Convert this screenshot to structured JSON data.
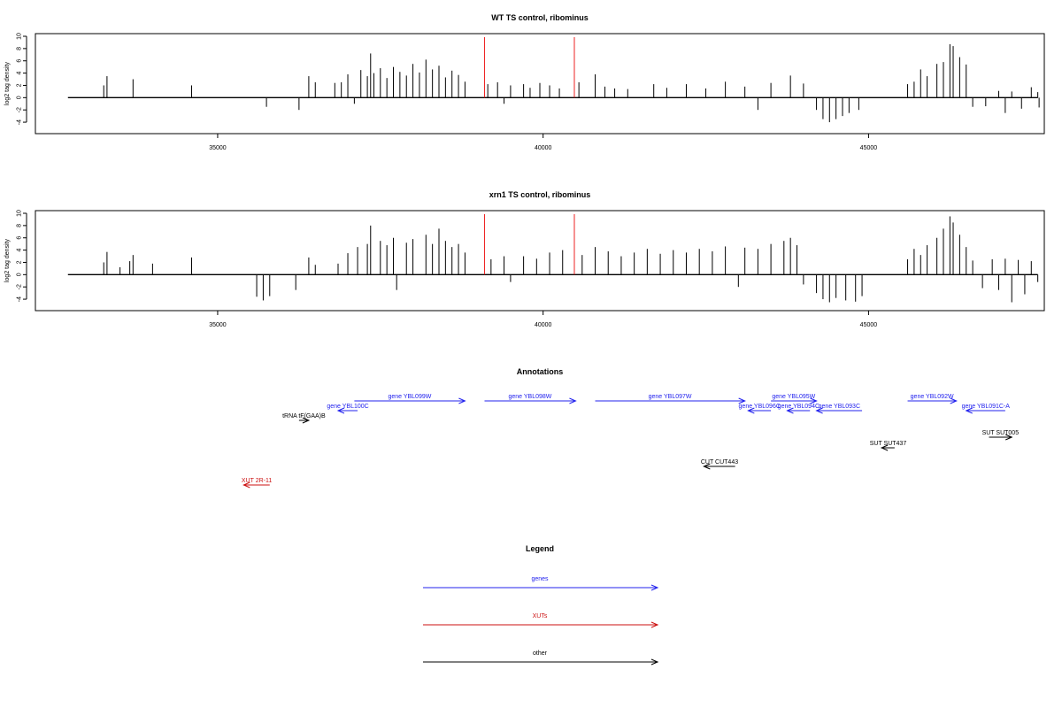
{
  "colors": {
    "axis": "#000000",
    "bars": "#000000",
    "marker": "#ee2222",
    "genes": "#2222ee",
    "xuts": "#cc1111",
    "other": "#000000"
  },
  "chart_data": [
    {
      "type": "bar",
      "title": "WT TS control, ribominus",
      "ylabel": "log2 tag density",
      "xlim": [
        32200,
        47700
      ],
      "ylim": [
        -5,
        10
      ],
      "xticks": [
        35000,
        40000,
        45000
      ],
      "yticks": [
        -4,
        -2,
        0,
        2,
        4,
        6,
        8,
        10
      ],
      "marker_lines_x": [
        39100,
        40480
      ],
      "bars": [
        {
          "x": 33250,
          "y": 2
        },
        {
          "x": 33300,
          "y": 3.5
        },
        {
          "x": 33700,
          "y": 3
        },
        {
          "x": 34600,
          "y": 2
        },
        {
          "x": 35750,
          "y": -1.5
        },
        {
          "x": 36250,
          "y": -2
        },
        {
          "x": 36400,
          "y": 3.5
        },
        {
          "x": 36500,
          "y": 2.5
        },
        {
          "x": 36800,
          "y": 2.4
        },
        {
          "x": 36900,
          "y": 2.5
        },
        {
          "x": 37000,
          "y": 3.8
        },
        {
          "x": 37100,
          "y": -1
        },
        {
          "x": 37200,
          "y": 4.5
        },
        {
          "x": 37300,
          "y": 3.5
        },
        {
          "x": 37350,
          "y": 7.2
        },
        {
          "x": 37400,
          "y": 4
        },
        {
          "x": 37500,
          "y": 4.8
        },
        {
          "x": 37600,
          "y": 3.2
        },
        {
          "x": 37700,
          "y": 5
        },
        {
          "x": 37800,
          "y": 4.2
        },
        {
          "x": 37900,
          "y": 3.6
        },
        {
          "x": 38000,
          "y": 5.5
        },
        {
          "x": 38100,
          "y": 4.1
        },
        {
          "x": 38200,
          "y": 6.2
        },
        {
          "x": 38300,
          "y": 4.6
        },
        {
          "x": 38400,
          "y": 5.2
        },
        {
          "x": 38500,
          "y": 3.3
        },
        {
          "x": 38600,
          "y": 4.4
        },
        {
          "x": 38700,
          "y": 3.7
        },
        {
          "x": 38800,
          "y": 2.6
        },
        {
          "x": 39150,
          "y": 2.2
        },
        {
          "x": 39300,
          "y": 2.5
        },
        {
          "x": 39400,
          "y": -1
        },
        {
          "x": 39500,
          "y": 2
        },
        {
          "x": 39700,
          "y": 2.2
        },
        {
          "x": 39800,
          "y": 1.6
        },
        {
          "x": 39950,
          "y": 2.4
        },
        {
          "x": 40100,
          "y": 2
        },
        {
          "x": 40250,
          "y": 1.5
        },
        {
          "x": 40550,
          "y": 2.5
        },
        {
          "x": 40800,
          "y": 3.8
        },
        {
          "x": 40950,
          "y": 1.8
        },
        {
          "x": 41100,
          "y": 1.5
        },
        {
          "x": 41300,
          "y": 1.4
        },
        {
          "x": 41700,
          "y": 2.2
        },
        {
          "x": 41900,
          "y": 1.6
        },
        {
          "x": 42200,
          "y": 2.2
        },
        {
          "x": 42500,
          "y": 1.5
        },
        {
          "x": 42800,
          "y": 2.6
        },
        {
          "x": 43100,
          "y": 1.8
        },
        {
          "x": 43300,
          "y": -2
        },
        {
          "x": 43500,
          "y": 2.4
        },
        {
          "x": 43800,
          "y": 3.6
        },
        {
          "x": 44000,
          "y": 2.3
        },
        {
          "x": 44200,
          "y": -2
        },
        {
          "x": 44300,
          "y": -3.5
        },
        {
          "x": 44400,
          "y": -4
        },
        {
          "x": 44500,
          "y": -3.5
        },
        {
          "x": 44600,
          "y": -3
        },
        {
          "x": 44700,
          "y": -2.5
        },
        {
          "x": 44850,
          "y": -2
        },
        {
          "x": 45600,
          "y": 2.2
        },
        {
          "x": 45700,
          "y": 2.6
        },
        {
          "x": 45800,
          "y": 4.6
        },
        {
          "x": 45900,
          "y": 3.5
        },
        {
          "x": 46050,
          "y": 5.5
        },
        {
          "x": 46150,
          "y": 5.8
        },
        {
          "x": 46250,
          "y": 8.7
        },
        {
          "x": 46300,
          "y": 8.4
        },
        {
          "x": 46400,
          "y": 6.6
        },
        {
          "x": 46500,
          "y": 5.4
        },
        {
          "x": 46600,
          "y": -1.5
        },
        {
          "x": 46800,
          "y": -1.4
        },
        {
          "x": 47000,
          "y": 1.1
        },
        {
          "x": 47100,
          "y": -2.5
        },
        {
          "x": 47200,
          "y": 1
        },
        {
          "x": 47350,
          "y": -1.8
        },
        {
          "x": 47500,
          "y": 1.7
        },
        {
          "x": 47600,
          "y": 0.9
        },
        {
          "x": 47620,
          "y": -1.6
        }
      ]
    },
    {
      "type": "bar",
      "title": "xrn1 TS control, ribominus",
      "ylabel": "log2 tag density",
      "xlim": [
        32200,
        47700
      ],
      "ylim": [
        -5,
        10
      ],
      "xticks": [
        35000,
        40000,
        45000
      ],
      "yticks": [
        -4,
        -2,
        0,
        2,
        4,
        6,
        8,
        10
      ],
      "marker_lines_x": [
        39100,
        40480
      ],
      "bars": [
        {
          "x": 33250,
          "y": 2
        },
        {
          "x": 33300,
          "y": 3.7
        },
        {
          "x": 33500,
          "y": 1.2
        },
        {
          "x": 33650,
          "y": 2.2
        },
        {
          "x": 33700,
          "y": 3.2
        },
        {
          "x": 34000,
          "y": 1.8
        },
        {
          "x": 34600,
          "y": 2.8
        },
        {
          "x": 35600,
          "y": -3.6
        },
        {
          "x": 35700,
          "y": -4.2
        },
        {
          "x": 35800,
          "y": -3.5
        },
        {
          "x": 36200,
          "y": -2.5
        },
        {
          "x": 36400,
          "y": 2.8
        },
        {
          "x": 36500,
          "y": 1.6
        },
        {
          "x": 36850,
          "y": 1.8
        },
        {
          "x": 37000,
          "y": 3.5
        },
        {
          "x": 37150,
          "y": 4.5
        },
        {
          "x": 37300,
          "y": 5
        },
        {
          "x": 37350,
          "y": 8
        },
        {
          "x": 37500,
          "y": 5.5
        },
        {
          "x": 37600,
          "y": 4.8
        },
        {
          "x": 37700,
          "y": 6
        },
        {
          "x": 37750,
          "y": -2.5
        },
        {
          "x": 37900,
          "y": 5.2
        },
        {
          "x": 38000,
          "y": 5.8
        },
        {
          "x": 38200,
          "y": 6.5
        },
        {
          "x": 38300,
          "y": 5
        },
        {
          "x": 38400,
          "y": 7.5
        },
        {
          "x": 38500,
          "y": 5.5
        },
        {
          "x": 38600,
          "y": 4.5
        },
        {
          "x": 38700,
          "y": 5
        },
        {
          "x": 38800,
          "y": 3.6
        },
        {
          "x": 39200,
          "y": 2.5
        },
        {
          "x": 39400,
          "y": 3
        },
        {
          "x": 39500,
          "y": -1.2
        },
        {
          "x": 39700,
          "y": 3
        },
        {
          "x": 39900,
          "y": 2.6
        },
        {
          "x": 40100,
          "y": 3.6
        },
        {
          "x": 40300,
          "y": 4
        },
        {
          "x": 40600,
          "y": 3.2
        },
        {
          "x": 40800,
          "y": 4.5
        },
        {
          "x": 41000,
          "y": 3.8
        },
        {
          "x": 41200,
          "y": 3
        },
        {
          "x": 41400,
          "y": 3.6
        },
        {
          "x": 41600,
          "y": 4.2
        },
        {
          "x": 41800,
          "y": 3.4
        },
        {
          "x": 42000,
          "y": 4
        },
        {
          "x": 42200,
          "y": 3.6
        },
        {
          "x": 42400,
          "y": 4.2
        },
        {
          "x": 42600,
          "y": 3.8
        },
        {
          "x": 42800,
          "y": 4.6
        },
        {
          "x": 43000,
          "y": -2
        },
        {
          "x": 43100,
          "y": 4.4
        },
        {
          "x": 43300,
          "y": 4.2
        },
        {
          "x": 43500,
          "y": 5
        },
        {
          "x": 43700,
          "y": 5.5
        },
        {
          "x": 43800,
          "y": 6
        },
        {
          "x": 43900,
          "y": 4.8
        },
        {
          "x": 44000,
          "y": -1.6
        },
        {
          "x": 44200,
          "y": -3
        },
        {
          "x": 44300,
          "y": -4
        },
        {
          "x": 44400,
          "y": -4.5
        },
        {
          "x": 44500,
          "y": -3.8
        },
        {
          "x": 44650,
          "y": -4.2
        },
        {
          "x": 44800,
          "y": -4.4
        },
        {
          "x": 44900,
          "y": -3.5
        },
        {
          "x": 45600,
          "y": 2.5
        },
        {
          "x": 45700,
          "y": 4.2
        },
        {
          "x": 45800,
          "y": 3.2
        },
        {
          "x": 45900,
          "y": 4.8
        },
        {
          "x": 46050,
          "y": 6
        },
        {
          "x": 46150,
          "y": 7.5
        },
        {
          "x": 46250,
          "y": 9.5
        },
        {
          "x": 46300,
          "y": 8.5
        },
        {
          "x": 46400,
          "y": 6.5
        },
        {
          "x": 46500,
          "y": 4.5
        },
        {
          "x": 46600,
          "y": 2.3
        },
        {
          "x": 46750,
          "y": -2.2
        },
        {
          "x": 46900,
          "y": 2.5
        },
        {
          "x": 47000,
          "y": -2.5
        },
        {
          "x": 47100,
          "y": 2.6
        },
        {
          "x": 47200,
          "y": -4.5
        },
        {
          "x": 47300,
          "y": 2.4
        },
        {
          "x": 47400,
          "y": -3.2
        },
        {
          "x": 47500,
          "y": 2.2
        },
        {
          "x": 47600,
          "y": -1.2
        }
      ]
    }
  ],
  "annotations": {
    "title": "Annotations",
    "items": [
      {
        "label": "gene YBL099W",
        "start": 37100,
        "end": 38800,
        "strand": "+",
        "kind": "genes"
      },
      {
        "label": "gene YBL098W",
        "start": 39100,
        "end": 40500,
        "strand": "+",
        "kind": "genes"
      },
      {
        "label": "gene YBL097W",
        "start": 40800,
        "end": 43100,
        "strand": "+",
        "kind": "genes"
      },
      {
        "label": "gene YBL095W",
        "start": 43500,
        "end": 44200,
        "strand": "+",
        "kind": "genes"
      },
      {
        "label": "gene YBL092W",
        "start": 45600,
        "end": 46350,
        "strand": "+",
        "kind": "genes"
      },
      {
        "label": "gene YBL100C",
        "start": 36850,
        "end": 37150,
        "strand": "-",
        "kind": "genes"
      },
      {
        "label": "gene YBL096C",
        "start": 43150,
        "end": 43500,
        "strand": "-",
        "kind": "genes"
      },
      {
        "label": "gene YBL094C",
        "start": 43750,
        "end": 44100,
        "strand": "-",
        "kind": "genes"
      },
      {
        "label": "gene YBL093C",
        "start": 44200,
        "end": 44900,
        "strand": "-",
        "kind": "genes"
      },
      {
        "label": "gene YBL091C-A",
        "start": 46500,
        "end": 47100,
        "strand": "-",
        "kind": "genes"
      },
      {
        "label": "tRNA tF(GAA)B",
        "start": 36250,
        "end": 36400,
        "strand": "+",
        "kind": "other"
      },
      {
        "label": "SUT SUT437",
        "start": 45200,
        "end": 45400,
        "strand": "-",
        "kind": "other"
      },
      {
        "label": "SUT SUT005",
        "start": 46850,
        "end": 47200,
        "strand": "+",
        "kind": "other"
      },
      {
        "label": "CUT CUT443",
        "start": 42470,
        "end": 42950,
        "strand": "-",
        "kind": "other"
      },
      {
        "label": "XUT 2R-11",
        "start": 35400,
        "end": 35800,
        "strand": "-",
        "kind": "xuts"
      }
    ]
  },
  "legend": {
    "title": "Legend",
    "entries": [
      {
        "label": "genes",
        "kind": "genes"
      },
      {
        "label": "XUTs",
        "kind": "xuts"
      },
      {
        "label": "other",
        "kind": "other"
      }
    ]
  }
}
